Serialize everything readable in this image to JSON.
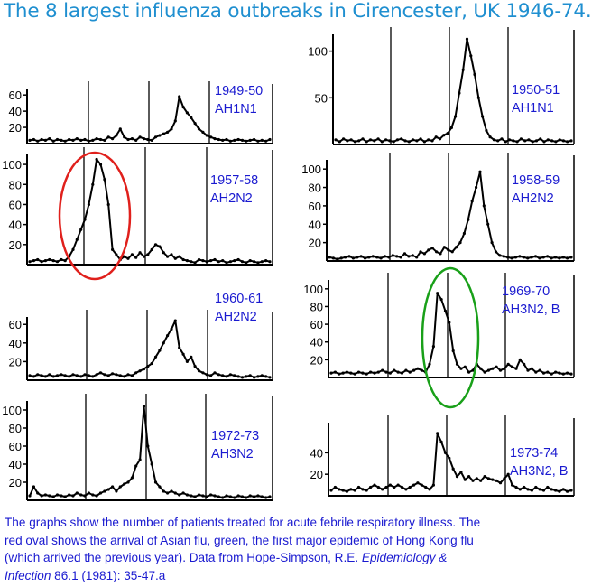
{
  "title": "The 8 largest influenza outbreaks in Cirencester, UK 1946-74.",
  "caption": {
    "line1": "The graphs show the number of patients treated for acute febrile respiratory illness.  The",
    "line2": "red oval shows the arrival of Asian flu, green, the first major epidemic of Hong Kong flu",
    "line3": "(which arrived the previous year).  Data from Hope-Simpson, R.E. ",
    "journal": "Epidemiology &",
    "journal2": "Infection",
    "citation": " 86.1 (1981): 35-47.a"
  },
  "colors": {
    "title": "#1f8fd0",
    "label": "#1a1ad0",
    "red_oval": "#e0201c",
    "green_oval": "#19a019"
  },
  "chart_data": [
    {
      "type": "line",
      "season": "1949-50",
      "subtype": "AH1N1",
      "yticks": [
        20,
        40,
        60
      ],
      "ylim": [
        0,
        68
      ],
      "peak": 58,
      "values": [
        4,
        5,
        3,
        5,
        4,
        6,
        3,
        5,
        4,
        3,
        5,
        4,
        6,
        4,
        5,
        3,
        4,
        6,
        5,
        4,
        8,
        6,
        10,
        18,
        8,
        5,
        6,
        4,
        8,
        6,
        5,
        4,
        8,
        10,
        12,
        14,
        18,
        28,
        58,
        45,
        38,
        32,
        25,
        18,
        14,
        10,
        8,
        6,
        5,
        4,
        5,
        3,
        4,
        5,
        4,
        3,
        4,
        5,
        3,
        4,
        3,
        5
      ]
    },
    {
      "type": "line",
      "season": "1950-51",
      "subtype": "AH1N1",
      "yticks": [
        50,
        100
      ],
      "ylim": [
        0,
        118
      ],
      "peak": 113,
      "values": [
        5,
        3,
        6,
        4,
        5,
        3,
        4,
        6,
        3,
        5,
        4,
        6,
        3,
        5,
        4,
        3,
        5,
        6,
        4,
        3,
        5,
        4,
        6,
        3,
        5,
        4,
        8,
        6,
        10,
        12,
        18,
        30,
        55,
        80,
        113,
        95,
        75,
        50,
        30,
        15,
        8,
        5,
        4,
        6,
        3,
        5,
        4,
        3,
        6,
        4,
        5,
        3,
        4,
        6,
        3,
        5,
        4,
        3,
        5,
        4,
        3,
        4
      ]
    },
    {
      "type": "line",
      "season": "1957-58",
      "subtype": "AH2N2",
      "yticks": [
        20,
        40,
        60,
        80,
        100
      ],
      "ylim": [
        0,
        110
      ],
      "peak": 105,
      "values": [
        3,
        4,
        5,
        3,
        4,
        5,
        4,
        3,
        5,
        4,
        8,
        15,
        25,
        35,
        45,
        60,
        80,
        105,
        100,
        85,
        60,
        15,
        10,
        5,
        8,
        6,
        10,
        7,
        12,
        8,
        10,
        15,
        20,
        18,
        12,
        8,
        10,
        6,
        8,
        5,
        4,
        3,
        2,
        5,
        4,
        3,
        4,
        5,
        3,
        4,
        2,
        3,
        4,
        5,
        3,
        2,
        4,
        3,
        2,
        3,
        4,
        3
      ]
    },
    {
      "type": "line",
      "season": "1958-59",
      "subtype": "AH2N2",
      "yticks": [
        20,
        40,
        60,
        80,
        100
      ],
      "ylim": [
        0,
        110
      ],
      "peak": 97,
      "values": [
        4,
        3,
        2,
        3,
        4,
        5,
        3,
        4,
        5,
        3,
        4,
        5,
        4,
        3,
        5,
        4,
        6,
        5,
        4,
        8,
        5,
        6,
        4,
        10,
        8,
        12,
        14,
        10,
        8,
        15,
        12,
        10,
        15,
        20,
        30,
        45,
        65,
        80,
        97,
        60,
        40,
        20,
        10,
        6,
        5,
        4,
        3,
        4,
        5,
        4,
        3,
        4,
        5,
        3,
        4,
        5,
        3,
        4,
        3,
        4,
        3,
        4
      ]
    },
    {
      "type": "line",
      "season": "1960-61",
      "subtype": "AH2N2",
      "yticks": [
        20,
        40,
        60
      ],
      "ylim": [
        0,
        68
      ],
      "peak": 64,
      "values": [
        5,
        4,
        6,
        5,
        4,
        6,
        4,
        5,
        6,
        5,
        4,
        6,
        5,
        4,
        6,
        5,
        4,
        6,
        8,
        6,
        5,
        7,
        6,
        5,
        4,
        6,
        5,
        8,
        10,
        12,
        15,
        18,
        25,
        32,
        40,
        48,
        55,
        64,
        35,
        28,
        20,
        25,
        15,
        10,
        8,
        6,
        5,
        8,
        6,
        5,
        4,
        6,
        5,
        4,
        3,
        4,
        5,
        3,
        4,
        5,
        4,
        3
      ]
    },
    {
      "type": "line",
      "season": "1969-70",
      "subtype": "AH3N2, B",
      "yticks": [
        20,
        40,
        60,
        80,
        100
      ],
      "ylim": [
        0,
        110
      ],
      "peak": 95,
      "values": [
        5,
        6,
        4,
        5,
        6,
        5,
        4,
        6,
        5,
        4,
        6,
        5,
        6,
        8,
        6,
        5,
        8,
        6,
        5,
        8,
        6,
        8,
        10,
        8,
        6,
        15,
        35,
        95,
        88,
        75,
        62,
        30,
        15,
        10,
        12,
        6,
        8,
        15,
        10,
        6,
        8,
        10,
        12,
        8,
        10,
        15,
        12,
        10,
        20,
        15,
        8,
        10,
        6,
        8,
        5,
        6,
        4,
        6,
        5,
        4,
        5,
        4
      ]
    },
    {
      "type": "line",
      "season": "1972-73",
      "subtype": "AH3N2",
      "yticks": [
        20,
        40,
        60,
        80,
        100
      ],
      "ylim": [
        0,
        110
      ],
      "peak": 104,
      "values": [
        5,
        15,
        8,
        5,
        6,
        5,
        4,
        6,
        5,
        4,
        6,
        5,
        8,
        6,
        5,
        8,
        6,
        5,
        8,
        10,
        12,
        15,
        10,
        15,
        18,
        20,
        25,
        38,
        45,
        104,
        60,
        40,
        20,
        15,
        10,
        8,
        10,
        8,
        6,
        8,
        6,
        5,
        4,
        6,
        5,
        4,
        6,
        5,
        4,
        3,
        5,
        4,
        3,
        5,
        4,
        3,
        5,
        4,
        5,
        4,
        3,
        4
      ]
    },
    {
      "type": "line",
      "season": "1973-74",
      "subtype": "AH3N2, B",
      "yticks": [
        20,
        40
      ],
      "ylim": [
        0,
        68
      ],
      "peak": 58,
      "values": [
        5,
        8,
        6,
        5,
        4,
        6,
        5,
        8,
        6,
        5,
        8,
        10,
        8,
        6,
        8,
        10,
        8,
        10,
        8,
        6,
        8,
        10,
        12,
        10,
        8,
        6,
        10,
        58,
        50,
        40,
        35,
        25,
        18,
        22,
        15,
        18,
        14,
        16,
        14,
        18,
        16,
        15,
        14,
        12,
        16,
        20,
        10,
        8,
        6,
        8,
        6,
        5,
        8,
        6,
        5,
        8,
        6,
        5,
        4,
        6,
        4,
        5
      ]
    }
  ]
}
